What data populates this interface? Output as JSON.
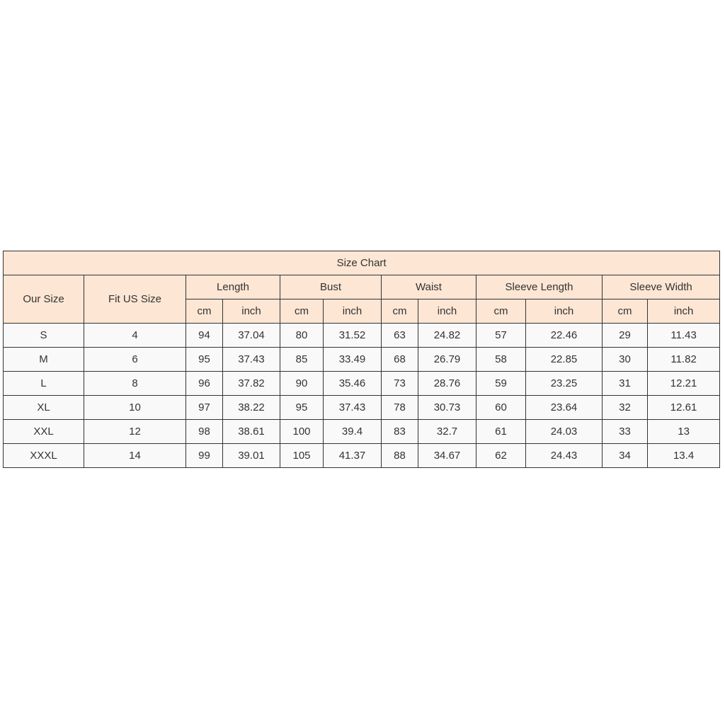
{
  "title": "Size Chart",
  "headers": {
    "our_size": "Our Size",
    "fit_us": "Fit US Size",
    "groups": [
      "Length",
      "Bust",
      "Waist",
      "Sleeve Length",
      "Sleeve Width"
    ],
    "cm": "cm",
    "inch": "inch"
  },
  "rows": [
    [
      "S",
      "4",
      "94",
      "37.04",
      "80",
      "31.52",
      "63",
      "24.82",
      "57",
      "22.46",
      "29",
      "11.43"
    ],
    [
      "M",
      "6",
      "95",
      "37.43",
      "85",
      "33.49",
      "68",
      "26.79",
      "58",
      "22.85",
      "30",
      "11.82"
    ],
    [
      "L",
      "8",
      "96",
      "37.82",
      "90",
      "35.46",
      "73",
      "28.76",
      "59",
      "23.25",
      "31",
      "12.21"
    ],
    [
      "XL",
      "10",
      "97",
      "38.22",
      "95",
      "37.43",
      "78",
      "30.73",
      "60",
      "23.64",
      "32",
      "12.61"
    ],
    [
      "XXL",
      "12",
      "98",
      "38.61",
      "100",
      "39.4",
      "83",
      "32.7",
      "61",
      "24.03",
      "33",
      "13"
    ],
    [
      "XXXL",
      "14",
      "99",
      "39.01",
      "105",
      "41.37",
      "88",
      "34.67",
      "62",
      "24.43",
      "34",
      "13.4"
    ]
  ],
  "colors": {
    "header_bg": "#fde6d4",
    "border": "#333333"
  }
}
